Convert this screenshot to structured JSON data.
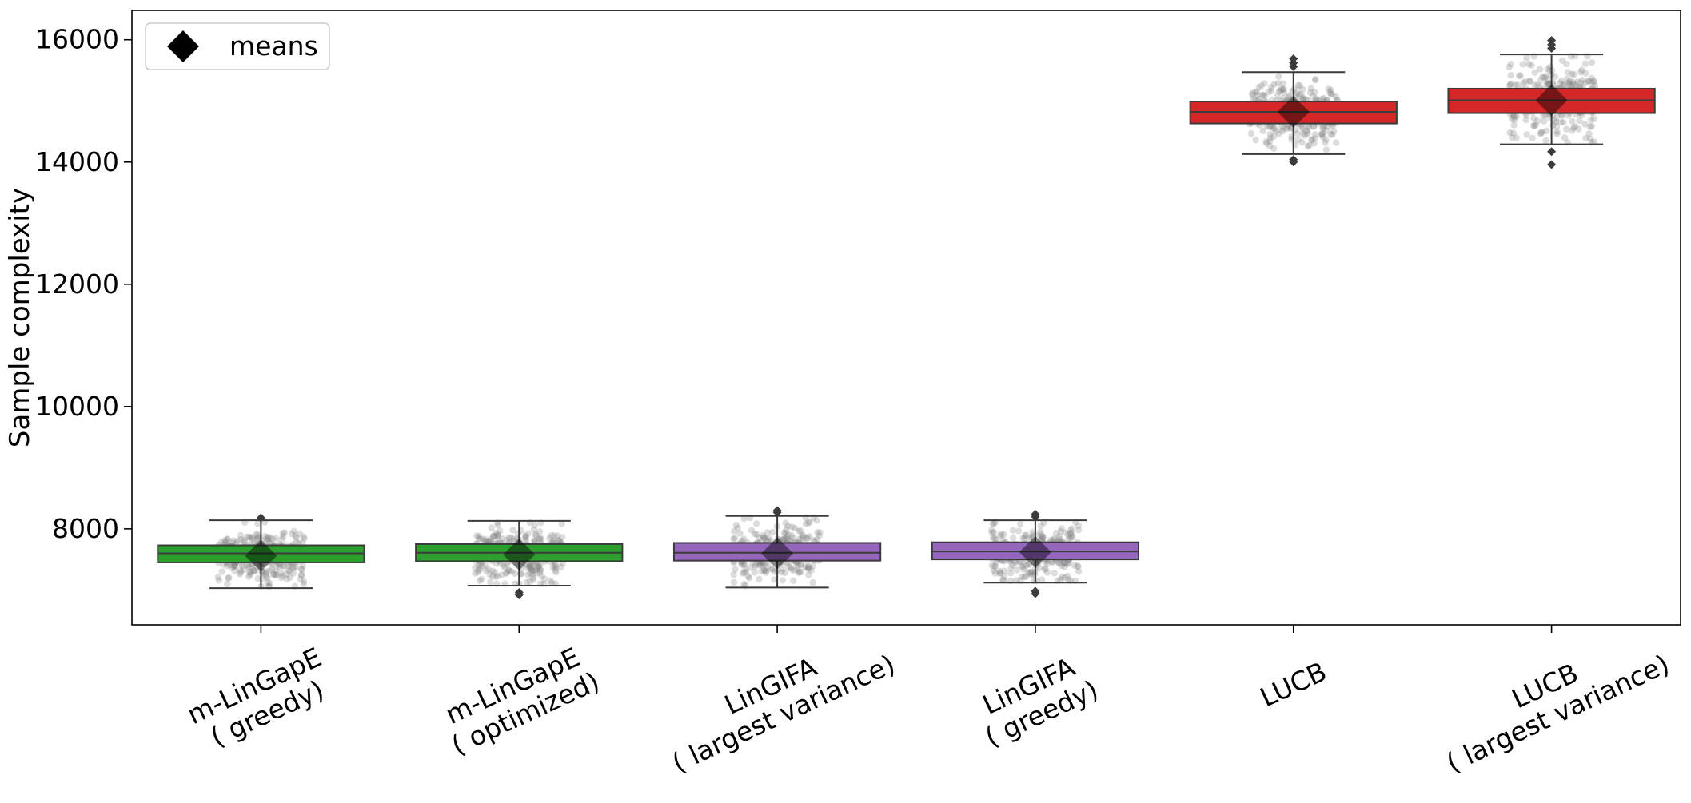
{
  "chart_data": {
    "type": "box",
    "title": "",
    "xlabel": "",
    "ylabel": "Sample complexity",
    "ylim": [
      6430,
      16480
    ],
    "yticks": [
      8000,
      10000,
      12000,
      14000,
      16000
    ],
    "grid": false,
    "legend": {
      "position": "top-left",
      "entries": [
        {
          "label": "means",
          "marker": "diamond",
          "color": "#000000"
        }
      ]
    },
    "categories": [
      [
        "m-LinGapE",
        "( greedy)"
      ],
      [
        "m-LinGapE",
        "( optimized)"
      ],
      [
        "LinGIFA",
        "( largest variance)"
      ],
      [
        "LinGIFA",
        "( greedy)"
      ],
      [
        "LUCB"
      ],
      [
        "LUCB",
        "( largest variance)"
      ]
    ],
    "series": [
      {
        "color": "#2ca02c",
        "q1": 7450,
        "median": 7600,
        "q3": 7730,
        "whisker_low": 7030,
        "whisker_high": 8140,
        "mean": 7560,
        "fliers": [
          8180
        ]
      },
      {
        "color": "#2ca02c",
        "q1": 7470,
        "median": 7610,
        "q3": 7750,
        "whisker_low": 7070,
        "whisker_high": 8130,
        "mean": 7580,
        "fliers": [
          6960,
          6920
        ]
      },
      {
        "color": "#9467bd",
        "q1": 7480,
        "median": 7610,
        "q3": 7770,
        "whisker_low": 7040,
        "whisker_high": 8210,
        "mean": 7600,
        "fliers": [
          8270,
          8300
        ]
      },
      {
        "color": "#9467bd",
        "q1": 7500,
        "median": 7630,
        "q3": 7780,
        "whisker_low": 7120,
        "whisker_high": 8140,
        "mean": 7620,
        "fliers": [
          8200,
          8240,
          6980,
          6940
        ]
      },
      {
        "color": "#d62728",
        "q1": 14630,
        "median": 14820,
        "q3": 14990,
        "whisker_low": 14130,
        "whisker_high": 15470,
        "mean": 14820,
        "fliers": [
          15560,
          15620,
          15690,
          14040,
          14000
        ]
      },
      {
        "color": "#d62728",
        "q1": 14800,
        "median": 15010,
        "q3": 15200,
        "whisker_low": 14290,
        "whisker_high": 15760,
        "mean": 15010,
        "fliers": [
          15860,
          15920,
          15990,
          14170,
          13960
        ]
      }
    ],
    "jitter_sd": [
      220,
      220,
      230,
      220,
      280,
      300
    ]
  }
}
